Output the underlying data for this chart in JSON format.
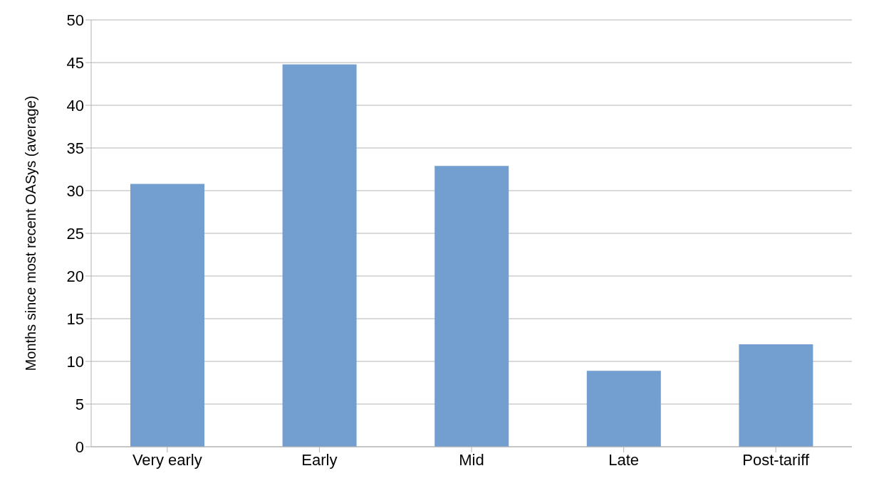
{
  "chart_data": {
    "type": "bar",
    "ylabel": "Months since most recent OASys (average)",
    "categories": [
      "Very early",
      "Early",
      "Mid",
      "Late",
      "Post-tariff"
    ],
    "values": [
      30.8,
      44.8,
      32.9,
      8.9,
      12.0
    ],
    "color": "#729fcf",
    "ylim": [
      0,
      50
    ],
    "yticks": [
      0,
      5,
      10,
      15,
      20,
      25,
      30,
      35,
      40,
      45,
      50
    ],
    "grid": "y"
  }
}
